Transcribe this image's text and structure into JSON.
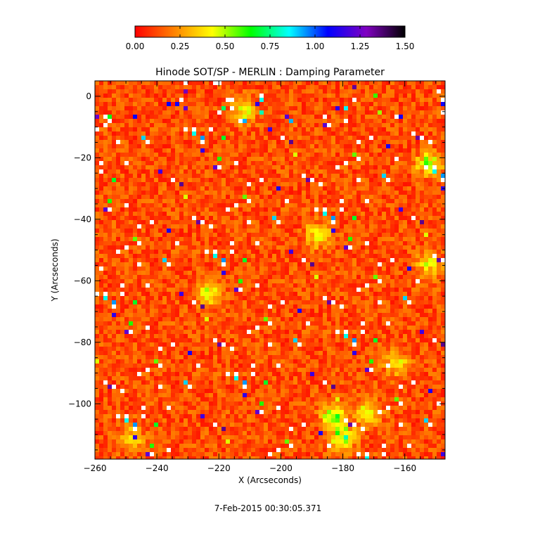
{
  "chart_data": {
    "type": "heatmap",
    "title": "Hinode SOT/SP - MERLIN : Damping Parameter",
    "xlabel": "X (Arcseconds)",
    "ylabel": "Y (Arcseconds)",
    "xlim": [
      -260,
      -147
    ],
    "ylim": [
      -118,
      5
    ],
    "x_ticks": [
      -260,
      -240,
      -220,
      -200,
      -180,
      -160
    ],
    "y_ticks": [
      0,
      -20,
      -40,
      -60,
      -80,
      -100
    ],
    "colorbar": {
      "range": [
        0.0,
        1.5
      ],
      "ticks": [
        "0.00",
        "0.25",
        "0.50",
        "0.75",
        "1.00",
        "1.25",
        "1.50"
      ],
      "colormap": [
        "#ff0000",
        "#ff8000",
        "#ffff00",
        "#00ff00",
        "#00ffff",
        "#0000ff",
        "#8000c0",
        "#000000"
      ]
    },
    "typical_value": 0.12,
    "enhanced_regions": [
      {
        "x": -180,
        "y": -111,
        "value": 0.55
      },
      {
        "x": -183,
        "y": -104,
        "value": 0.45
      },
      {
        "x": -172,
        "y": -103,
        "value": 0.35
      },
      {
        "x": -152,
        "y": -22,
        "value": 0.45
      },
      {
        "x": -188,
        "y": -45,
        "value": 0.35
      },
      {
        "x": -223,
        "y": -64,
        "value": 0.35
      },
      {
        "x": -152,
        "y": -55,
        "value": 0.35
      },
      {
        "x": -248,
        "y": -111,
        "value": 0.3
      },
      {
        "x": -163,
        "y": -87,
        "value": 0.3
      },
      {
        "x": -212,
        "y": -5,
        "value": 0.35
      }
    ],
    "timestamp": "7-Feb-2015 00:30:05.371"
  }
}
